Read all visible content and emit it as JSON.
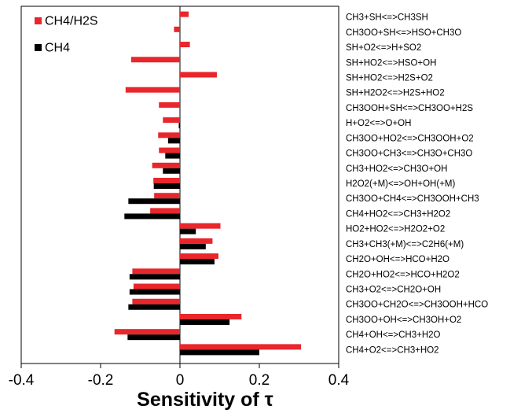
{
  "chart_data": {
    "type": "bar",
    "orientation": "horizontal",
    "title": "",
    "xlabel": "Sensitivity of τ",
    "ylabel": "",
    "xlim": [
      -0.4,
      0.4
    ],
    "xticks": [
      "-0.4",
      "-0.2",
      "0",
      "0.2",
      "0.4"
    ],
    "grid": false,
    "legend_position": "top-left",
    "categories": [
      "CH3+SH<=>CH3SH",
      "CH3OO+SH<=>HSO+CH3O",
      "SH+O2<=>H+SO2",
      "SH+HO2<=>HSO+OH",
      "SH+HO2<=>H2S+O2",
      "SH+H2O2<=>H2S+HO2",
      "CH3OOH+SH<=>CH3OO+H2S",
      "H+O2<=>O+OH",
      "CH3OO+HO2<=>CH3OOH+O2",
      "CH3OO+CH3<=>CH3O+CH3O",
      "CH3+HO2<=>CH3O+OH",
      "H2O2(+M)<=>OH+OH(+M)",
      "CH3OO+CH4<=>CH3OOH+CH3",
      "CH4+HO2<=>CH3+H2O2",
      "HO2+HO2<=>H2O2+O2",
      "CH3+CH3(+M)<=>C2H6(+M)",
      "CH2O+OH<=>HCO+H2O",
      "CH2O+HO2<=>HCO+H2O2",
      "CH3+O2<=>CH2O+OH",
      "CH3OO+CH2O<=>CH3OOH+HCO",
      "CH3OO+OH<=>CH3OH+O2",
      "CH4+OH<=>CH3+H2O",
      "CH4+O2<=>CH3+HO2"
    ],
    "series": [
      {
        "name": "CH4/H2S",
        "color": "#e8262b",
        "values": [
          0.022,
          -0.015,
          0.025,
          -0.123,
          0.093,
          -0.137,
          -0.053,
          -0.043,
          -0.055,
          -0.053,
          -0.07,
          -0.067,
          -0.065,
          -0.075,
          0.102,
          0.082,
          0.097,
          -0.12,
          -0.117,
          -0.12,
          0.155,
          -0.165,
          0.305
        ]
      },
      {
        "name": "CH4",
        "color": "#000000",
        "values": [
          0,
          0,
          0,
          0,
          0,
          0,
          0,
          -0.003,
          -0.03,
          -0.037,
          -0.043,
          -0.066,
          -0.13,
          -0.14,
          0.04,
          0.065,
          0.087,
          -0.127,
          -0.127,
          -0.13,
          0.125,
          -0.132,
          0.2
        ]
      }
    ]
  }
}
